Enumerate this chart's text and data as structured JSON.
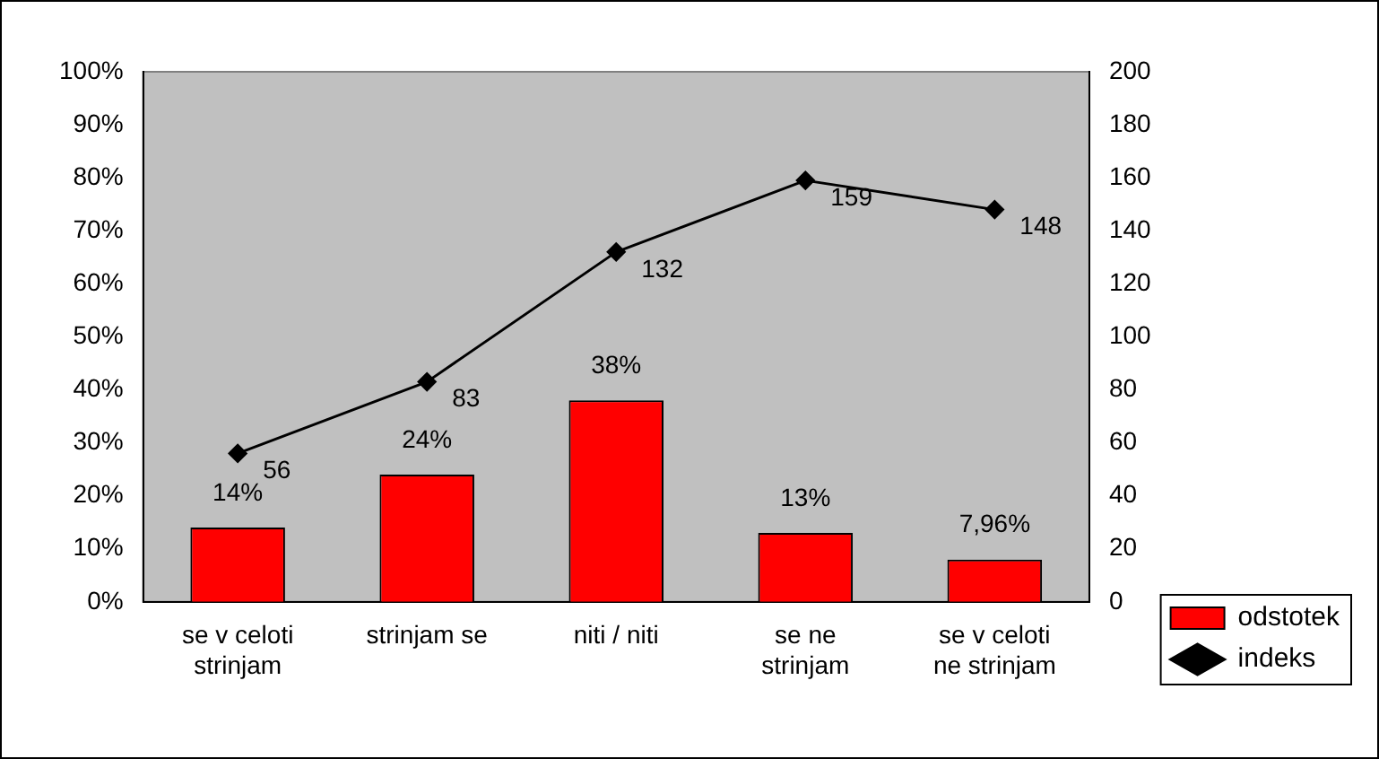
{
  "chart_data": {
    "type": "bar",
    "categories": [
      "se v celoti strinjam",
      "strinjam se",
      "niti / niti",
      "se ne strinjam",
      "se v celoti ne strinjam"
    ],
    "series": [
      {
        "name": "odstotek",
        "color": "#ff0000",
        "values": [
          14,
          24,
          38,
          13,
          7.96
        ],
        "value_labels": [
          "14%",
          "24%",
          "38%",
          "13%",
          "7,96%"
        ]
      },
      {
        "name": "indeks",
        "type": "line",
        "axis": "y2",
        "color": "#000000",
        "values": [
          56,
          83,
          132,
          159,
          148
        ],
        "value_labels": [
          "56",
          "83",
          "132",
          "159",
          "148"
        ]
      }
    ],
    "ylim": [
      0,
      100
    ],
    "yticks": [
      {
        "value": 0,
        "label": "0%"
      },
      {
        "value": 10,
        "label": "10%"
      },
      {
        "value": 20,
        "label": "20%"
      },
      {
        "value": 30,
        "label": "30%"
      },
      {
        "value": 40,
        "label": "40%"
      },
      {
        "value": 50,
        "label": "50%"
      },
      {
        "value": 60,
        "label": "60%"
      },
      {
        "value": 70,
        "label": "70%"
      },
      {
        "value": 80,
        "label": "80%"
      },
      {
        "value": 90,
        "label": "90%"
      },
      {
        "value": 100,
        "label": "100%"
      }
    ],
    "y2lim": [
      0,
      200
    ],
    "y2ticks": [
      0,
      20,
      40,
      60,
      80,
      100,
      120,
      140,
      160,
      180,
      200
    ],
    "legend": "bottom right",
    "marker": "diamond",
    "line_style": "solid",
    "grid": false
  }
}
